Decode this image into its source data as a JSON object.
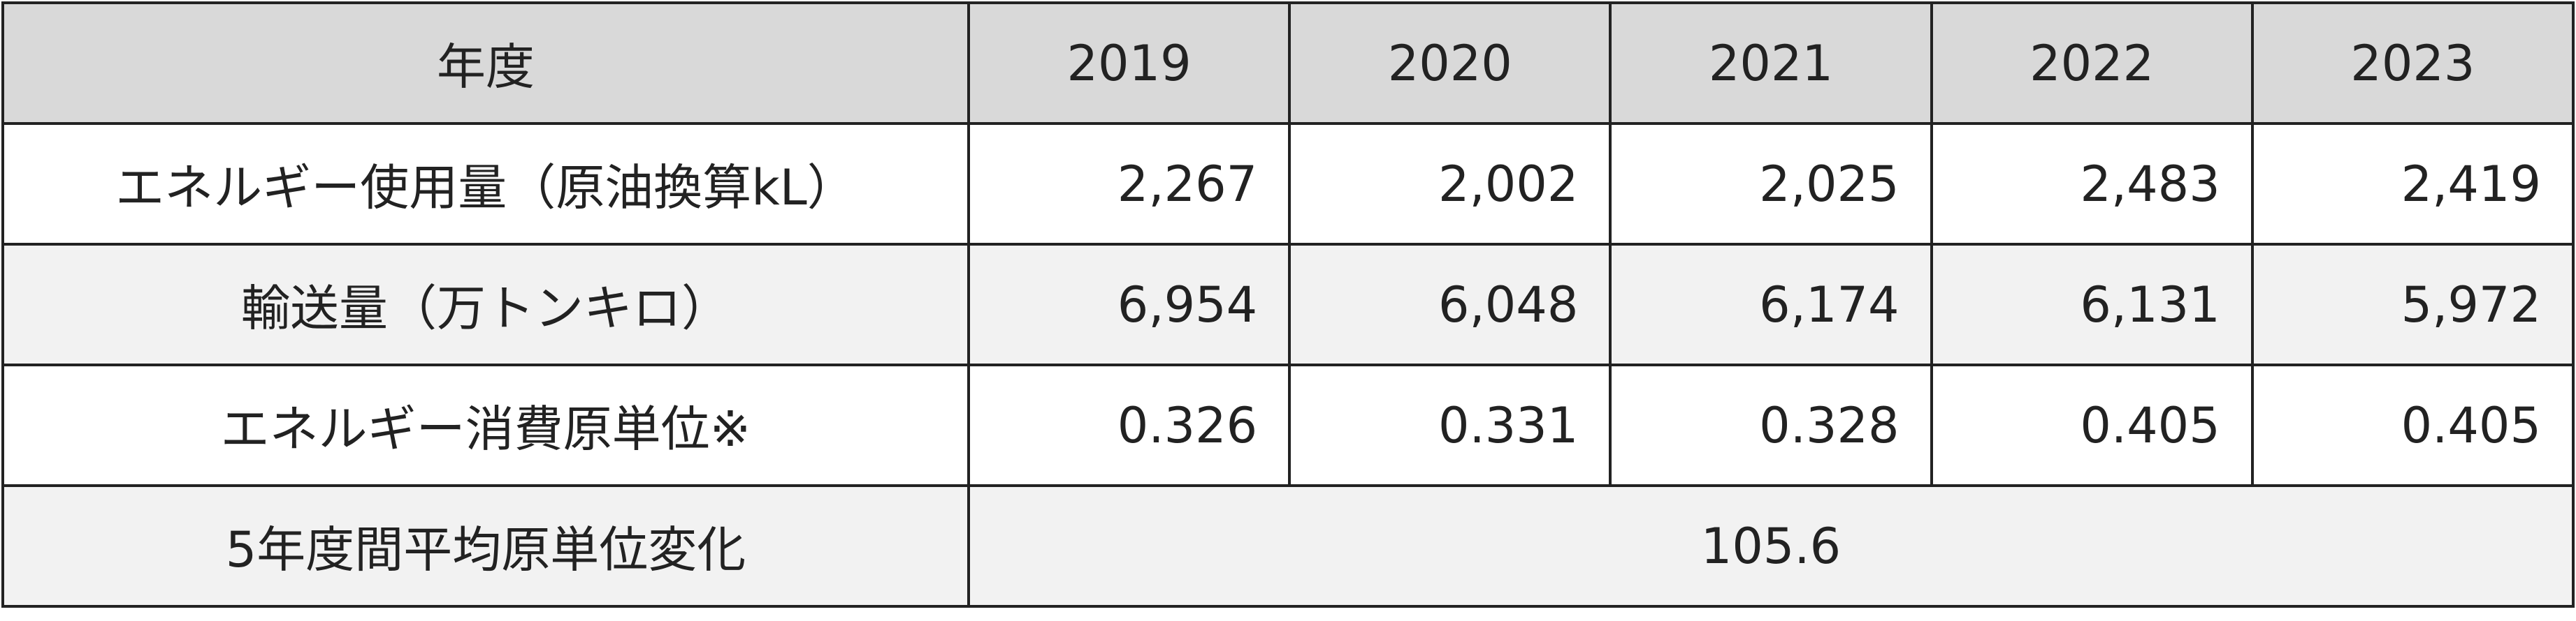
{
  "table": {
    "header": [
      "年度",
      "2019",
      "2020",
      "2021",
      "2022",
      "2023"
    ],
    "rows": [
      [
        "エネルギー使用量（原油換算kL）",
        "2,267",
        "2,002",
        "2,025",
        "2,483",
        "2,419"
      ],
      [
        "輸送量（万トンキロ）",
        "6,954",
        "6,048",
        "6,174",
        "6,131",
        "5,972"
      ],
      [
        "エネルギー消費原単位※",
        "0.326",
        "0.331",
        "0.328",
        "0.405",
        "0.405"
      ],
      [
        "5年度間平均原単位変化",
        "105.6"
      ]
    ]
  }
}
